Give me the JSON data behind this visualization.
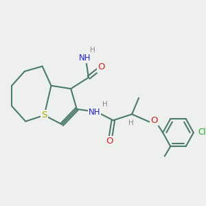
{
  "bg_color": "#eef0ee",
  "bond_color": "#4a7a6a",
  "bond_width": 1.5,
  "atom_colors": {
    "N": "#2222cc",
    "O": "#cc2222",
    "S": "#aaaa00",
    "Cl": "#22aa22",
    "C": "#4a7a6a",
    "H": "#888888"
  },
  "font_size": 8.5
}
